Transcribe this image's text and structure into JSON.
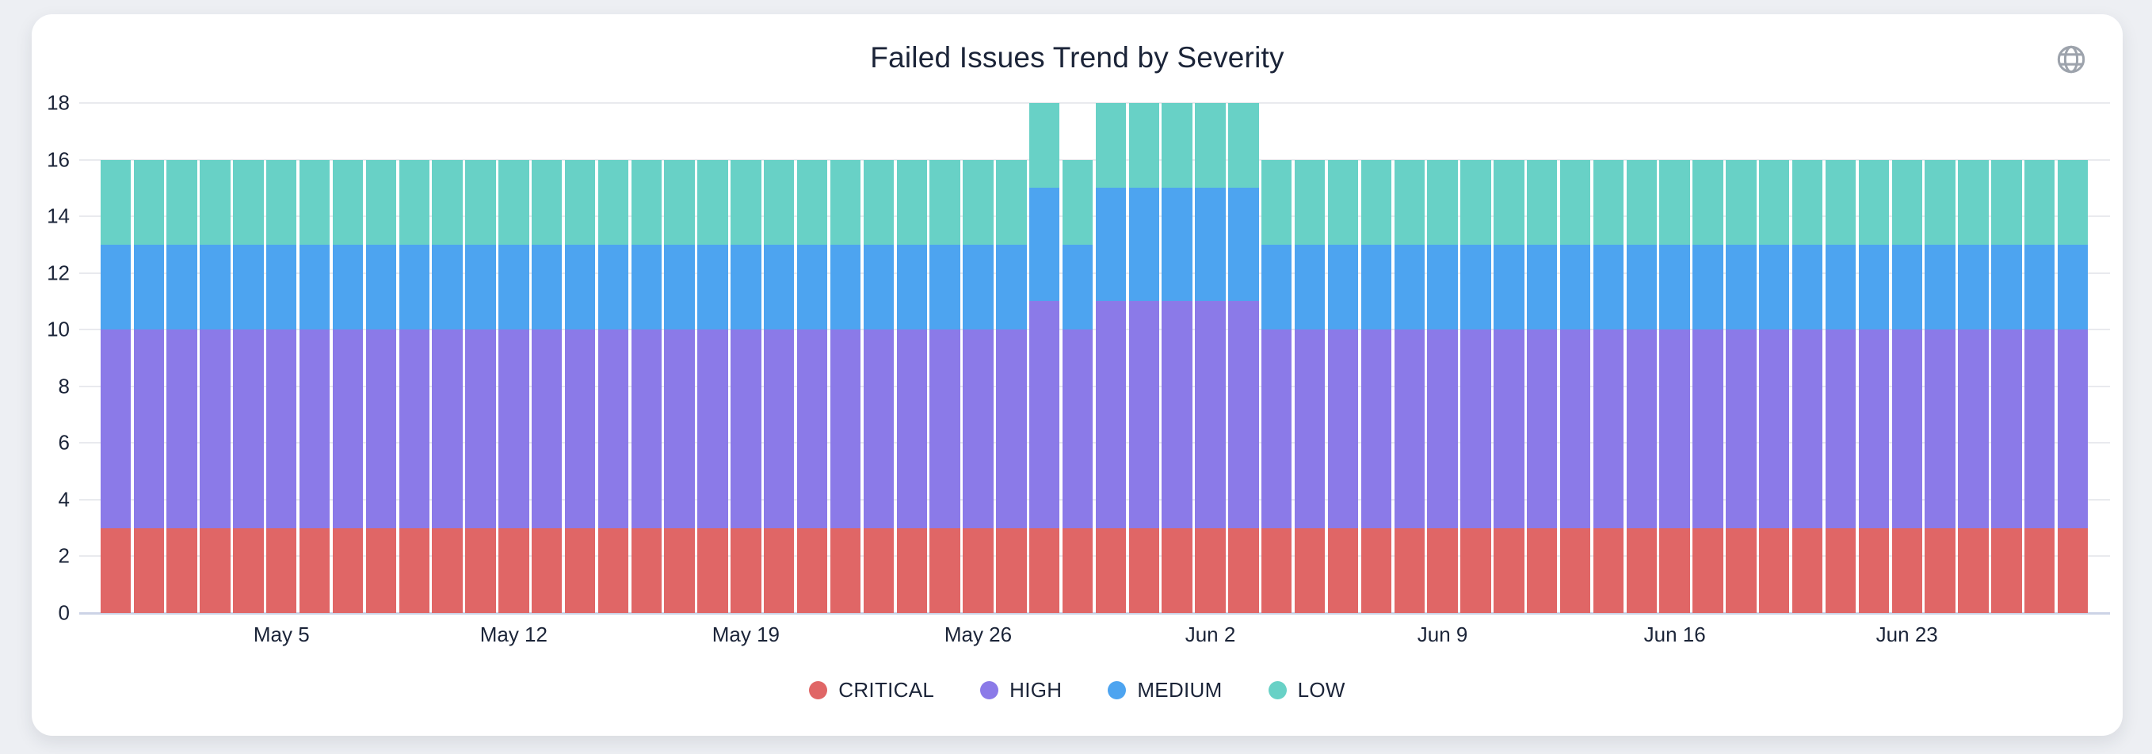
{
  "page": {
    "background_color": "#edeff3",
    "card_background_color": "#ffffff",
    "text_color": "#1b2438"
  },
  "header": {
    "title": "Failed Issues Trend by Severity",
    "globe_icon": "globe-icon",
    "globe_icon_color": "#9da3ac"
  },
  "chart_data": {
    "type": "bar",
    "stacked": true,
    "title": "Failed Issues Trend by Severity",
    "xlabel": "",
    "ylabel": "",
    "ylim": [
      0,
      18
    ],
    "y_ticks": [
      0,
      2,
      4,
      6,
      8,
      10,
      12,
      14,
      16,
      18
    ],
    "grid": true,
    "legend_position": "bottom",
    "categories": [
      "Apr 30",
      "May 1",
      "May 2",
      "May 3",
      "May 4",
      "May 5",
      "May 6",
      "May 7",
      "May 8",
      "May 9",
      "May 10",
      "May 11",
      "May 12",
      "May 13",
      "May 14",
      "May 15",
      "May 16",
      "May 17",
      "May 18",
      "May 19",
      "May 20",
      "May 21",
      "May 22",
      "May 23",
      "May 24",
      "May 25",
      "May 26",
      "May 27",
      "May 28",
      "May 29",
      "May 30",
      "May 31",
      "Jun 1",
      "Jun 2",
      "Jun 3",
      "Jun 4",
      "Jun 5",
      "Jun 6",
      "Jun 7",
      "Jun 8",
      "Jun 9",
      "Jun 10",
      "Jun 11",
      "Jun 12",
      "Jun 13",
      "Jun 14",
      "Jun 15",
      "Jun 16",
      "Jun 17",
      "Jun 18",
      "Jun 19",
      "Jun 20",
      "Jun 21",
      "Jun 22",
      "Jun 23",
      "Jun 24",
      "Jun 25",
      "Jun 26",
      "Jun 27",
      "Jun 28"
    ],
    "x_tick_labels": [
      {
        "index": 5,
        "label": "May 5"
      },
      {
        "index": 12,
        "label": "May 12"
      },
      {
        "index": 19,
        "label": "May 19"
      },
      {
        "index": 26,
        "label": "May 26"
      },
      {
        "index": 33,
        "label": "Jun 2"
      },
      {
        "index": 40,
        "label": "Jun 9"
      },
      {
        "index": 47,
        "label": "Jun 16"
      },
      {
        "index": 54,
        "label": "Jun 23"
      }
    ],
    "series": [
      {
        "name": "CRITICAL",
        "color": "#e06666",
        "values": [
          3,
          3,
          3,
          3,
          3,
          3,
          3,
          3,
          3,
          3,
          3,
          3,
          3,
          3,
          3,
          3,
          3,
          3,
          3,
          3,
          3,
          3,
          3,
          3,
          3,
          3,
          3,
          3,
          3,
          3,
          3,
          3,
          3,
          3,
          3,
          3,
          3,
          3,
          3,
          3,
          3,
          3,
          3,
          3,
          3,
          3,
          3,
          3,
          3,
          3,
          3,
          3,
          3,
          3,
          3,
          3,
          3,
          3,
          3,
          3
        ]
      },
      {
        "name": "HIGH",
        "color": "#8b7ae8",
        "values": [
          7,
          7,
          7,
          7,
          7,
          7,
          7,
          7,
          7,
          7,
          7,
          7,
          7,
          7,
          7,
          7,
          7,
          7,
          7,
          7,
          7,
          7,
          7,
          7,
          7,
          7,
          7,
          7,
          8,
          7,
          8,
          8,
          8,
          8,
          8,
          7,
          7,
          7,
          7,
          7,
          7,
          7,
          7,
          7,
          7,
          7,
          7,
          7,
          7,
          7,
          7,
          7,
          7,
          7,
          7,
          7,
          7,
          7,
          7,
          7
        ]
      },
      {
        "name": "MEDIUM",
        "color": "#4da4f0",
        "values": [
          3,
          3,
          3,
          3,
          3,
          3,
          3,
          3,
          3,
          3,
          3,
          3,
          3,
          3,
          3,
          3,
          3,
          3,
          3,
          3,
          3,
          3,
          3,
          3,
          3,
          3,
          3,
          3,
          4,
          3,
          4,
          4,
          4,
          4,
          4,
          3,
          3,
          3,
          3,
          3,
          3,
          3,
          3,
          3,
          3,
          3,
          3,
          3,
          3,
          3,
          3,
          3,
          3,
          3,
          3,
          3,
          3,
          3,
          3,
          3
        ]
      },
      {
        "name": "LOW",
        "color": "#68d1c6",
        "values": [
          3,
          3,
          3,
          3,
          3,
          3,
          3,
          3,
          3,
          3,
          3,
          3,
          3,
          3,
          3,
          3,
          3,
          3,
          3,
          3,
          3,
          3,
          3,
          3,
          3,
          3,
          3,
          3,
          3,
          3,
          3,
          3,
          3,
          3,
          3,
          3,
          3,
          3,
          3,
          3,
          3,
          3,
          3,
          3,
          3,
          3,
          3,
          3,
          3,
          3,
          3,
          3,
          3,
          3,
          3,
          3,
          3,
          3,
          3,
          3
        ]
      }
    ]
  }
}
